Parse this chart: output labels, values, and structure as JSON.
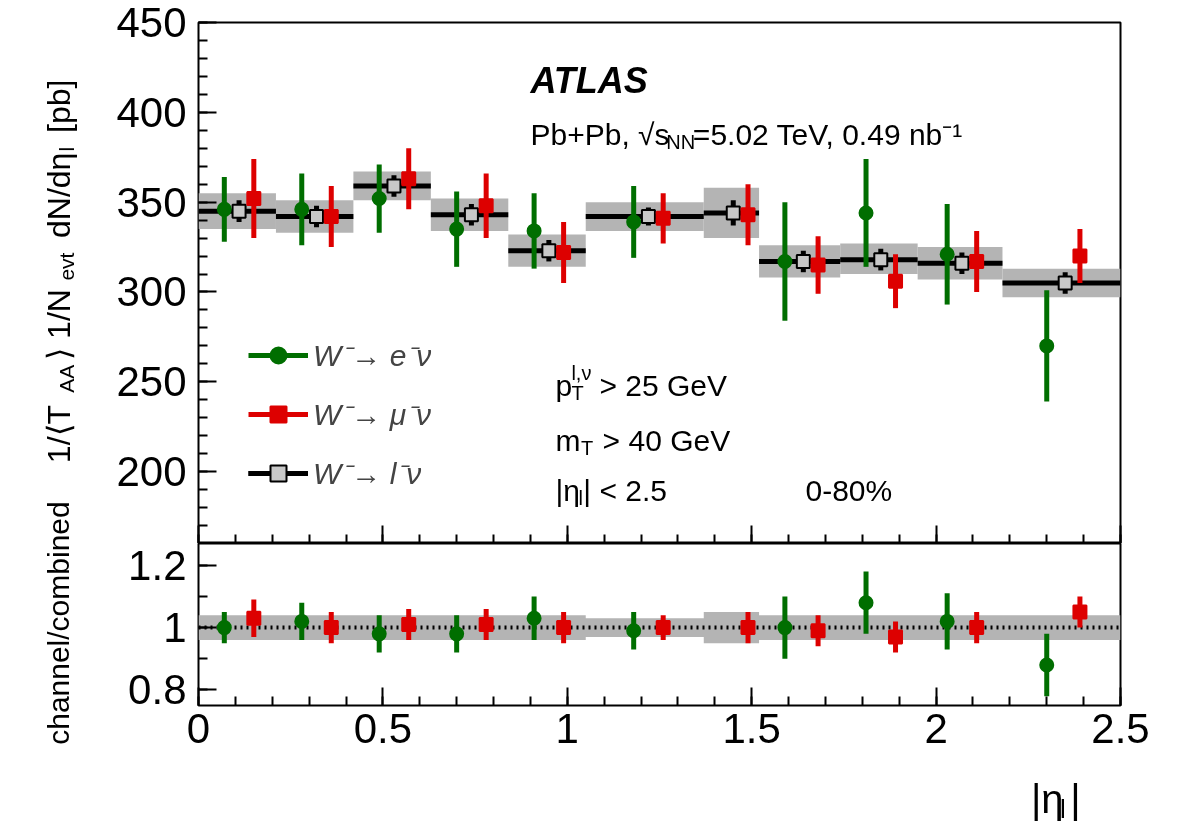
{
  "chart_data": [
    {
      "type": "scatter",
      "ylabel": "1/⟨T$_{AA}$⟩ 1/N$_{evt}$ dN/dη$_{l}$ [pb]",
      "annotations": [
        "ATLAS",
        "Pb+Pb, √s$_{NN}$=5.02 TeV, 0.49 nb⁻¹",
        "p$_{T}$$^{l,ν}$ > 25 GeV",
        "m$_{T}$ > 40 GeV",
        "|η$_{l}$| < 2.5",
        "0-80%"
      ],
      "xlim": [
        0,
        2.5
      ],
      "xticks": [
        0,
        0.5,
        1,
        1.5,
        2,
        2.5
      ],
      "ylim": [
        160,
        450
      ],
      "yticks": [
        200,
        250,
        300,
        350,
        400,
        450
      ],
      "tick_labels": "y",
      "legend": "bottom left",
      "series": [
        {
          "type": "bar",
          "color": "#b4b4b4",
          "x": [
            0.105,
            0.315,
            0.525,
            0.735,
            0.945,
            1.21,
            1.445,
            1.63,
            1.845,
            2.065,
            2.34
          ],
          "base": [
            335,
            333,
            351,
            334,
            314,
            334,
            330,
            308,
            310,
            307,
            297
          ],
          "values": [
            20,
            18,
            16,
            18,
            18,
            16,
            28,
            18,
            17,
            18,
            16
          ]
        },
        {
          "name": "W⁻→ e⁻ν",
          "color": "#006e00",
          "marker": "circle",
          "x": [
            0.07,
            0.28,
            0.49,
            0.7,
            0.91,
            1.18,
            1.59,
            1.81,
            2.03,
            2.3
          ],
          "values": [
            346,
            346,
            352,
            335,
            334,
            339,
            317,
            344,
            321,
            270
          ],
          "errors": [
            18,
            20,
            19,
            21,
            21,
            20,
            33,
            30,
            28,
            31
          ]
        },
        {
          "name": "W⁻→ μ⁻ν",
          "color": "#dd0000",
          "marker": "square",
          "x": [
            0.15,
            0.36,
            0.57,
            0.78,
            0.99,
            1.26,
            1.49,
            1.68,
            1.89,
            2.11,
            2.39
          ],
          "values": [
            352,
            342,
            363,
            348,
            322,
            341,
            343,
            315,
            306,
            317,
            320
          ],
          "errors": [
            22,
            17,
            17,
            18,
            17,
            14,
            17,
            16,
            15,
            17,
            15
          ]
        },
        {
          "name": "W⁻→ l⁻ν",
          "color": "#000000",
          "marker": "square",
          "x": [
            0.11,
            0.32,
            0.53,
            0.74,
            0.95,
            1.22,
            1.45,
            1.64,
            1.85,
            2.07,
            2.35
          ],
          "values": [
            345,
            342,
            359,
            343,
            323,
            342,
            344,
            317,
            318,
            316,
            305
          ],
          "errors": [
            6,
            6,
            6,
            6,
            6,
            5,
            7,
            6,
            6,
            6,
            6
          ],
          "xerrors": [
            [
              0,
              0.21
            ],
            [
              0.21,
              0.42
            ],
            [
              0.42,
              0.63
            ],
            [
              0.63,
              0.84
            ],
            [
              0.84,
              1.05
            ],
            [
              1.05,
              1.37
            ],
            [
              1.37,
              1.52
            ],
            [
              1.52,
              1.74
            ],
            [
              1.74,
              1.95
            ],
            [
              1.95,
              2.18
            ],
            [
              2.18,
              2.5
            ]
          ]
        }
      ]
    },
    {
      "type": "scatter",
      "ylabel": "channel/combined",
      "xlabel": "|η$_{l}$|",
      "xlim": [
        0,
        2.5
      ],
      "xticks": [
        0,
        0.5,
        1,
        1.5,
        2,
        2.5
      ],
      "ylim": [
        0.75,
        1.27
      ],
      "yticks": [
        0.8,
        1,
        1.2
      ],
      "series": [
        {
          "type": "line",
          "color": "#000000",
          "marker": "none",
          "line_style": "dotted",
          "x": [
            0,
            0.21,
            0.21,
            0.42,
            0.42,
            0.63,
            0.63,
            0.84,
            0.84,
            1.05,
            1.05,
            1.37,
            1.37,
            1.52,
            1.52,
            1.74,
            1.74,
            1.95,
            1.95,
            2.18,
            2.18,
            2.5
          ],
          "values": [
            1,
            1,
            1,
            1,
            1,
            1,
            1,
            1,
            1,
            1,
            1,
            1,
            1,
            1,
            1,
            1,
            1,
            1,
            1,
            1,
            1,
            1
          ],
          "lower": [
            0.96,
            0.96,
            0.96,
            0.96,
            0.96,
            0.96,
            0.96,
            0.96,
            0.96,
            0.96,
            0.97,
            0.97,
            0.95,
            0.95,
            0.96,
            0.96,
            0.96,
            0.96,
            0.96,
            0.96,
            0.96,
            0.96
          ],
          "upper": [
            1.04,
            1.04,
            1.04,
            1.04,
            1.04,
            1.04,
            1.04,
            1.04,
            1.04,
            1.04,
            1.03,
            1.03,
            1.05,
            1.05,
            1.04,
            1.04,
            1.04,
            1.04,
            1.04,
            1.04,
            1.04,
            1.04
          ]
        },
        {
          "color": "#006e00",
          "marker": "circle",
          "x": [
            0.07,
            0.28,
            0.49,
            0.7,
            0.91,
            1.18,
            1.59,
            1.81,
            2.03,
            2.3
          ],
          "values": [
            1.0,
            1.02,
            0.98,
            0.98,
            1.03,
            0.99,
            1.0,
            1.08,
            1.02,
            0.88
          ],
          "errors": [
            0.05,
            0.06,
            0.06,
            0.06,
            0.07,
            0.06,
            0.1,
            0.1,
            0.09,
            0.1
          ]
        },
        {
          "color": "#dd0000",
          "marker": "square",
          "x": [
            0.15,
            0.36,
            0.57,
            0.78,
            0.99,
            1.26,
            1.49,
            1.68,
            1.89,
            2.11,
            2.39
          ],
          "values": [
            1.03,
            1.0,
            1.01,
            1.01,
            1.0,
            1.0,
            1.0,
            0.99,
            0.97,
            1.0,
            1.05
          ],
          "errors": [
            0.06,
            0.05,
            0.05,
            0.05,
            0.05,
            0.04,
            0.05,
            0.05,
            0.05,
            0.05,
            0.05
          ]
        }
      ]
    }
  ]
}
